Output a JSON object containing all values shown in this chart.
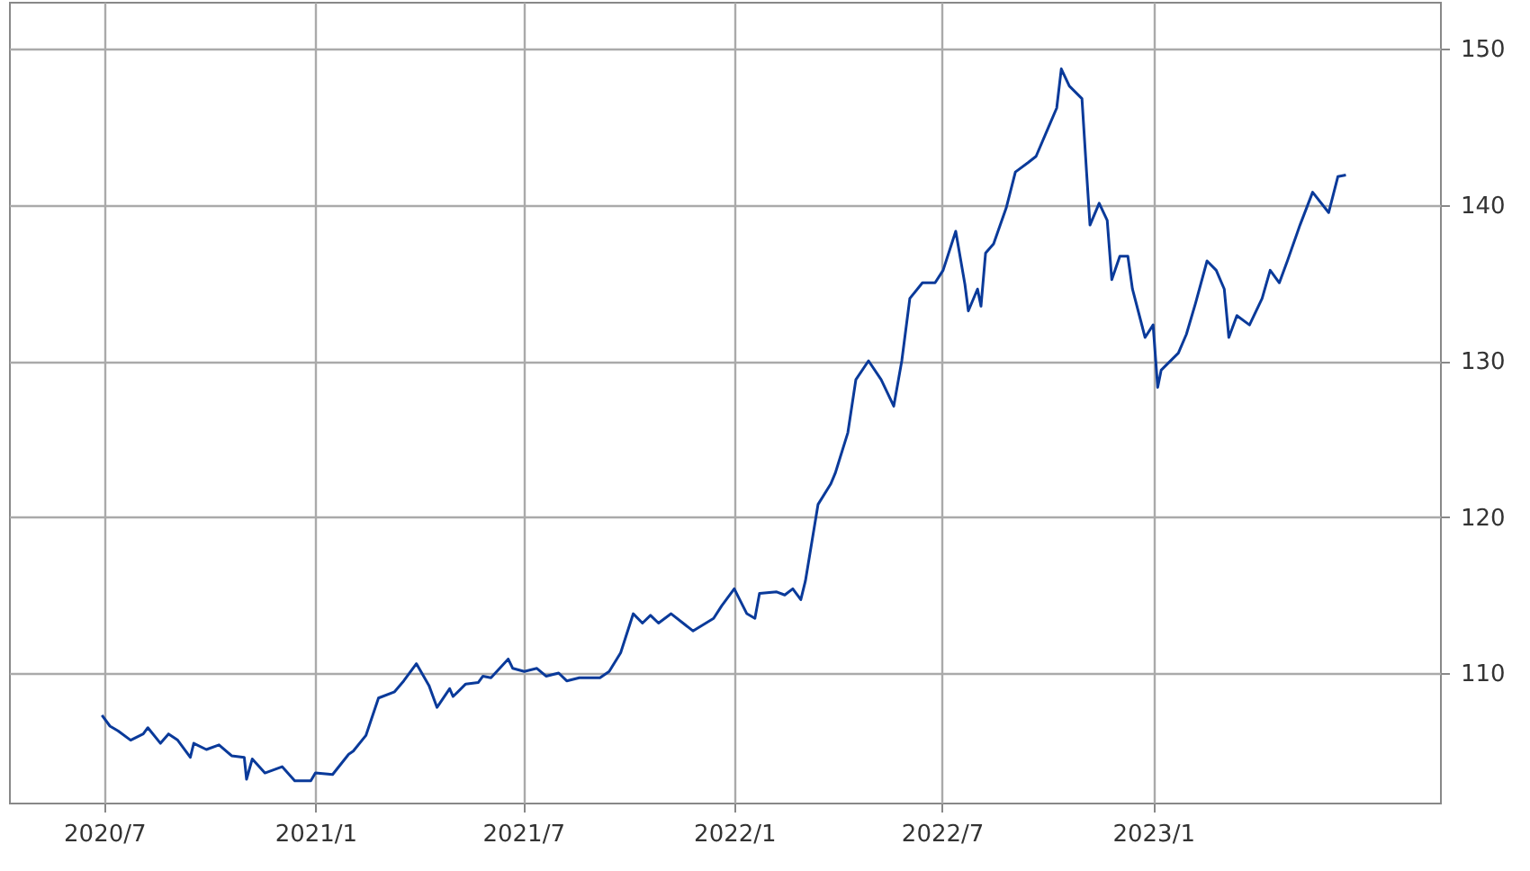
{
  "chart_data": {
    "type": "line",
    "color": "#0a3a9a",
    "grid": true,
    "xlim": [
      "2020-04-09",
      "2023-09-08"
    ],
    "ylim": [
      101.7,
      153
    ],
    "xticks": [
      {
        "value": "2020-07-01",
        "label": "2020/7"
      },
      {
        "value": "2021-01-01",
        "label": "2021/1"
      },
      {
        "value": "2021-07-01",
        "label": "2021/7"
      },
      {
        "value": "2022-01-01",
        "label": "2022/1"
      },
      {
        "value": "2022-07-01",
        "label": "2022/7"
      },
      {
        "value": "2023-01-01",
        "label": "2023/1"
      }
    ],
    "yticks": [
      110,
      120,
      130,
      140,
      150
    ],
    "x": [
      "2020-06-29",
      "2020-07-06",
      "2020-07-13",
      "2020-07-24",
      "2020-08-04",
      "2020-08-08",
      "2020-08-19",
      "2020-08-26",
      "2020-09-03",
      "2020-09-14",
      "2020-09-17",
      "2020-09-28",
      "2020-10-09",
      "2020-10-20",
      "2020-10-31",
      "2020-11-02",
      "2020-11-07",
      "2020-11-18",
      "2020-12-03",
      "2020-12-14",
      "2020-12-28",
      "2021-01-01",
      "2021-01-16",
      "2021-01-30",
      "2021-02-03",
      "2021-02-14",
      "2021-02-25",
      "2021-03-11",
      "2021-03-19",
      "2021-03-30",
      "2021-04-10",
      "2021-04-17",
      "2021-04-28",
      "2021-05-01",
      "2021-05-12",
      "2021-05-23",
      "2021-05-27",
      "2021-06-03",
      "2021-06-18",
      "2021-06-22",
      "2021-07-02",
      "2021-07-13",
      "2021-07-21",
      "2021-08-01",
      "2021-08-08",
      "2021-08-19",
      "2021-09-06",
      "2021-09-14",
      "2021-09-24",
      "2021-10-05",
      "2021-10-13",
      "2021-10-20",
      "2021-10-27",
      "2021-11-07",
      "2021-11-26",
      "2021-12-14",
      "2021-12-21",
      "2022-01-01",
      "2022-01-12",
      "2022-01-19",
      "2022-01-23",
      "2022-02-07",
      "2022-02-14",
      "2022-02-21",
      "2022-02-28",
      "2022-03-04",
      "2022-03-15",
      "2022-03-26",
      "2022-03-30",
      "2022-04-10",
      "2022-04-17",
      "2022-04-28",
      "2022-05-09",
      "2022-05-20",
      "2022-05-27",
      "2022-06-03",
      "2022-06-14",
      "2022-06-25",
      "2022-07-02",
      "2022-07-13",
      "2022-07-21",
      "2022-07-24",
      "2022-08-01",
      "2022-08-04",
      "2022-08-08",
      "2022-08-15",
      "2022-08-26",
      "2022-09-03",
      "2022-09-14",
      "2022-09-21",
      "2022-10-02",
      "2022-10-09",
      "2022-10-13",
      "2022-10-20",
      "2022-10-31",
      "2022-11-04",
      "2022-11-07",
      "2022-11-15",
      "2022-11-22",
      "2022-11-26",
      "2022-12-03",
      "2022-12-10",
      "2022-12-14",
      "2022-12-25",
      "2023-01-01",
      "2023-01-05",
      "2023-01-08",
      "2023-01-23",
      "2023-01-30",
      "2023-02-07",
      "2023-02-17",
      "2023-02-25",
      "2023-03-04",
      "2023-03-08",
      "2023-03-15",
      "2023-03-26",
      "2023-04-06",
      "2023-04-13",
      "2023-04-21",
      "2023-04-28",
      "2023-05-09",
      "2023-05-20",
      "2023-06-03",
      "2023-06-11",
      "2023-06-18"
    ],
    "values": [
      107.3,
      106.6,
      106.3,
      105.7,
      106.1,
      106.5,
      105.5,
      106.1,
      105.7,
      104.6,
      105.5,
      105.1,
      105.4,
      104.7,
      104.6,
      103.2,
      104.5,
      103.6,
      104.0,
      103.1,
      103.1,
      103.6,
      103.5,
      104.8,
      105.0,
      106.0,
      108.4,
      108.8,
      109.5,
      110.6,
      109.2,
      107.8,
      109.0,
      108.5,
      109.3,
      109.4,
      109.8,
      109.7,
      110.9,
      110.3,
      110.1,
      110.3,
      109.8,
      110.0,
      109.5,
      109.7,
      109.7,
      110.1,
      111.3,
      113.8,
      113.2,
      113.7,
      113.2,
      113.8,
      112.7,
      113.5,
      114.3,
      115.4,
      113.8,
      113.5,
      115.1,
      115.2,
      115.0,
      115.4,
      114.7,
      115.9,
      120.8,
      122.1,
      122.8,
      125.4,
      128.8,
      130.0,
      128.8,
      127.1,
      130.0,
      134.0,
      135.0,
      135.0,
      135.8,
      138.3,
      134.9,
      133.2,
      134.6,
      133.5,
      136.9,
      137.5,
      139.8,
      142.1,
      142.7,
      143.1,
      145.0,
      146.2,
      148.7,
      147.6,
      146.8,
      142.1,
      138.7,
      140.1,
      139.0,
      135.2,
      136.7,
      136.7,
      134.6,
      131.5,
      132.3,
      128.3,
      129.4,
      130.5,
      131.7,
      133.7,
      136.4,
      135.8,
      134.6,
      131.5,
      132.9,
      132.3,
      134.0,
      135.8,
      135.0,
      136.4,
      138.7,
      140.8,
      139.5,
      141.8,
      141.9
    ]
  }
}
